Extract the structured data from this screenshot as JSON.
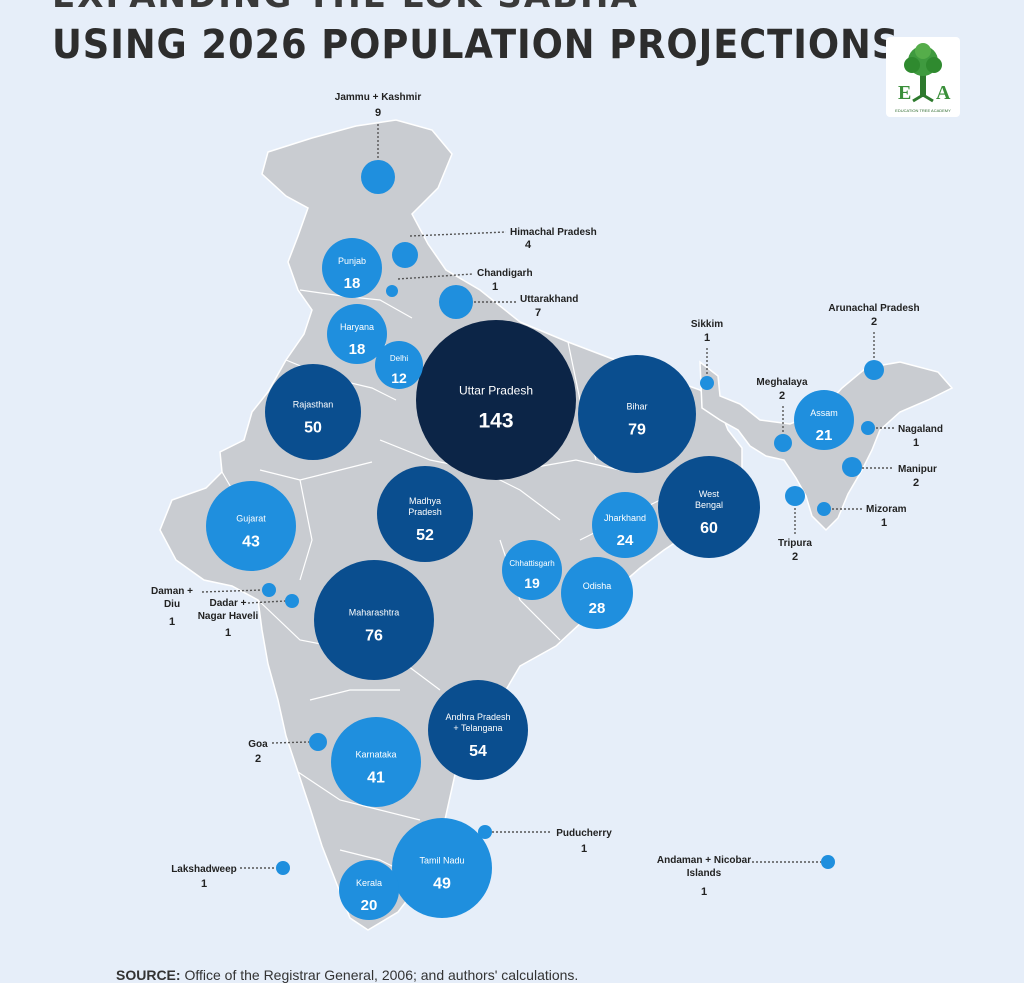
{
  "header": {
    "title_partial": "EXPANDING THE LOK SABHA",
    "title": "USING 2026 POPULATION PROJECTIONS"
  },
  "logo": {
    "letter_left": "E",
    "letter_right": "A",
    "caption": "EDUCATION TREE ACADEMY",
    "icon": "tree-icon"
  },
  "colors": {
    "background": "#e6eef9",
    "land": "#c9ccd1",
    "border": "#ffffff",
    "tier_light": "#1f8fde",
    "tier_medium": "#0a4e8f",
    "tier_dark": "#0c2547",
    "leader": "#555555"
  },
  "states": [
    {
      "name": "Uttar Pradesh",
      "seats": "143"
    },
    {
      "name": "Maharashtra",
      "seats": "76"
    },
    {
      "name": "Bihar",
      "seats": "79"
    },
    {
      "name": "West Bengal",
      "seats": "60"
    },
    {
      "name": "Andhra Pradesh + Telangana",
      "seats": "54"
    },
    {
      "name": "Madhya Pradesh",
      "seats": "52"
    },
    {
      "name": "Rajasthan",
      "seats": "50"
    },
    {
      "name": "Tamil Nadu",
      "seats": "49"
    },
    {
      "name": "Gujarat",
      "seats": "43"
    },
    {
      "name": "Karnataka",
      "seats": "41"
    },
    {
      "name": "Odisha",
      "seats": "28"
    },
    {
      "name": "Jharkhand",
      "seats": "24"
    },
    {
      "name": "Assam",
      "seats": "21"
    },
    {
      "name": "Kerala",
      "seats": "20"
    },
    {
      "name": "Chhattisgarh",
      "seats": "19"
    },
    {
      "name": "Punjab",
      "seats": "18"
    },
    {
      "name": "Haryana",
      "seats": "18"
    },
    {
      "name": "Delhi",
      "seats": "12"
    }
  ],
  "callouts": [
    {
      "name": "Jammu + Kashmir",
      "seats": "9"
    },
    {
      "name": "Uttarakhand",
      "seats": "7"
    },
    {
      "name": "Himachal Pradesh",
      "seats": "4"
    },
    {
      "name": "Chandigarh",
      "seats": "1"
    },
    {
      "name": "Sikkim",
      "seats": "1"
    },
    {
      "name": "Arunachal Pradesh",
      "seats": "2"
    },
    {
      "name": "Meghalaya",
      "seats": "2"
    },
    {
      "name": "Nagaland",
      "seats": "1"
    },
    {
      "name": "Manipur",
      "seats": "2"
    },
    {
      "name": "Mizoram",
      "seats": "1"
    },
    {
      "name": "Tripura",
      "seats": "2"
    },
    {
      "name": "Daman + Diu",
      "seats": "1"
    },
    {
      "name": "Dadar + Nagar Haveli",
      "seats": "1"
    },
    {
      "name": "Goa",
      "seats": "2"
    },
    {
      "name": "Puducherry",
      "seats": "1"
    },
    {
      "name": "Lakshadweep",
      "seats": "1"
    },
    {
      "name": "Andaman + Nicobar Islands",
      "seats": "1"
    }
  ],
  "source": {
    "label": "SOURCE:",
    "text": "Office of the Registrar General, 2006; and authors' calculations."
  }
}
